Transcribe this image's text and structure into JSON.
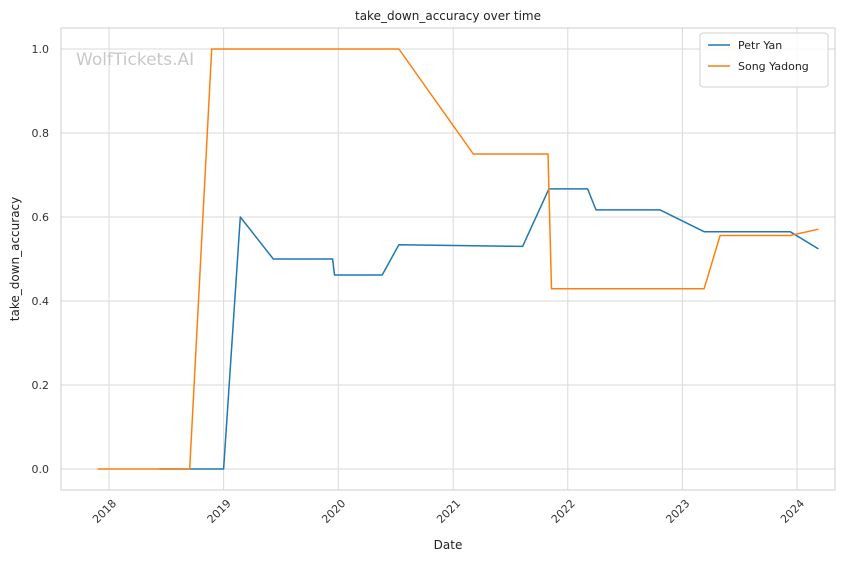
{
  "chart_data": {
    "type": "line",
    "title": "take_down_accuracy over time",
    "xlabel": "Date",
    "ylabel": "take_down_accuracy",
    "watermark": "WolfTickets.AI",
    "x_range": [
      "2017-08-01",
      "2024-05-01"
    ],
    "ylim": [
      -0.05,
      1.05
    ],
    "x_ticks": [
      "2018",
      "2019",
      "2020",
      "2021",
      "2022",
      "2023",
      "2024"
    ],
    "y_ticks": [
      "0.0",
      "0.2",
      "0.4",
      "0.6",
      "0.8",
      "1.0"
    ],
    "grid": true,
    "legend_position": "top-right",
    "series": [
      {
        "name": "Petr Yan",
        "color": "#1f77b4",
        "points": [
          [
            "2018-06-10",
            0.0
          ],
          [
            "2019-01-01",
            0.0
          ],
          [
            "2019-02-23",
            0.6
          ],
          [
            "2019-06-08",
            0.5
          ],
          [
            "2019-12-14",
            0.5
          ],
          [
            "2019-12-20",
            0.462
          ],
          [
            "2020-05-20",
            0.462
          ],
          [
            "2020-07-12",
            0.534
          ],
          [
            "2021-08-10",
            0.53
          ],
          [
            "2021-11-02",
            0.667
          ],
          [
            "2022-03-05",
            0.667
          ],
          [
            "2022-04-01",
            0.617
          ],
          [
            "2022-10-22",
            0.617
          ],
          [
            "2023-03-11",
            0.565
          ],
          [
            "2023-12-10",
            0.565
          ],
          [
            "2024-03-09",
            0.524
          ]
        ]
      },
      {
        "name": "Song Yadong",
        "color": "#ff7f0e",
        "points": [
          [
            "2017-11-25",
            0.0
          ],
          [
            "2018-09-15",
            0.0
          ],
          [
            "2018-11-24",
            1.0
          ],
          [
            "2020-07-12",
            1.0
          ],
          [
            "2021-03-06",
            0.75
          ],
          [
            "2021-10-30",
            0.75
          ],
          [
            "2021-11-10",
            0.429
          ],
          [
            "2023-03-11",
            0.429
          ],
          [
            "2023-05-01",
            0.556
          ],
          [
            "2023-12-10",
            0.556
          ],
          [
            "2024-03-09",
            0.571
          ]
        ]
      }
    ]
  }
}
